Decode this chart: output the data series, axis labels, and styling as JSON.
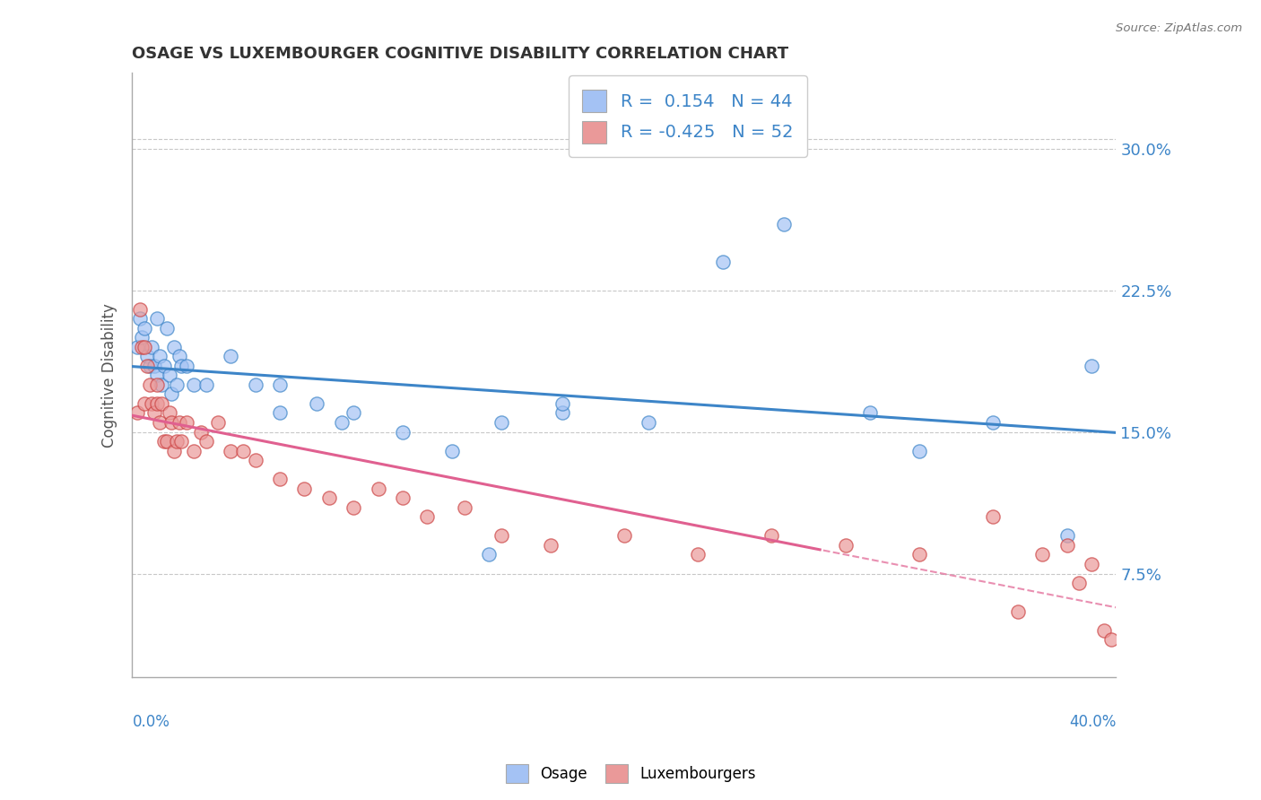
{
  "title": "OSAGE VS LUXEMBOURGER COGNITIVE DISABILITY CORRELATION CHART",
  "source": "Source: ZipAtlas.com",
  "ylabel": "Cognitive Disability",
  "legend_label1": "Osage",
  "legend_label2": "Luxembourgers",
  "r1": 0.154,
  "n1": 44,
  "r2": -0.425,
  "n2": 52,
  "color_osage": "#a4c2f4",
  "color_lux": "#ea9999",
  "color_line_osage": "#3d85c8",
  "color_line_lux": "#e06090",
  "color_tick": "#3d85c8",
  "color_title": "#333333",
  "ytick_labels": [
    "7.5%",
    "15.0%",
    "22.5%",
    "30.0%"
  ],
  "ytick_values": [
    0.075,
    0.15,
    0.225,
    0.3
  ],
  "xlim": [
    0.0,
    0.4
  ],
  "ylim": [
    0.02,
    0.34
  ],
  "background_color": "#ffffff",
  "grid_color": "#c8c8c8",
  "osage_x": [
    0.002,
    0.003,
    0.004,
    0.005,
    0.006,
    0.007,
    0.008,
    0.009,
    0.01,
    0.01,
    0.011,
    0.012,
    0.013,
    0.014,
    0.015,
    0.016,
    0.017,
    0.018,
    0.019,
    0.02,
    0.022,
    0.025,
    0.03,
    0.04,
    0.05,
    0.06,
    0.075,
    0.09,
    0.11,
    0.13,
    0.15,
    0.175,
    0.21,
    0.24,
    0.3,
    0.35,
    0.38,
    0.39,
    0.32,
    0.265,
    0.175,
    0.145,
    0.085,
    0.06
  ],
  "osage_y": [
    0.195,
    0.21,
    0.2,
    0.205,
    0.19,
    0.185,
    0.195,
    0.185,
    0.18,
    0.21,
    0.19,
    0.175,
    0.185,
    0.205,
    0.18,
    0.17,
    0.195,
    0.175,
    0.19,
    0.185,
    0.185,
    0.175,
    0.175,
    0.19,
    0.175,
    0.175,
    0.165,
    0.16,
    0.15,
    0.14,
    0.155,
    0.16,
    0.155,
    0.24,
    0.16,
    0.155,
    0.095,
    0.185,
    0.14,
    0.26,
    0.165,
    0.085,
    0.155,
    0.16
  ],
  "lux_x": [
    0.002,
    0.003,
    0.004,
    0.005,
    0.005,
    0.006,
    0.007,
    0.008,
    0.009,
    0.01,
    0.01,
    0.011,
    0.012,
    0.013,
    0.014,
    0.015,
    0.016,
    0.017,
    0.018,
    0.019,
    0.02,
    0.022,
    0.025,
    0.028,
    0.03,
    0.035,
    0.04,
    0.045,
    0.05,
    0.06,
    0.07,
    0.08,
    0.09,
    0.1,
    0.11,
    0.12,
    0.135,
    0.15,
    0.17,
    0.2,
    0.23,
    0.26,
    0.29,
    0.32,
    0.35,
    0.36,
    0.37,
    0.38,
    0.385,
    0.39,
    0.395,
    0.398
  ],
  "lux_y": [
    0.16,
    0.215,
    0.195,
    0.195,
    0.165,
    0.185,
    0.175,
    0.165,
    0.16,
    0.175,
    0.165,
    0.155,
    0.165,
    0.145,
    0.145,
    0.16,
    0.155,
    0.14,
    0.145,
    0.155,
    0.145,
    0.155,
    0.14,
    0.15,
    0.145,
    0.155,
    0.14,
    0.14,
    0.135,
    0.125,
    0.12,
    0.115,
    0.11,
    0.12,
    0.115,
    0.105,
    0.11,
    0.095,
    0.09,
    0.095,
    0.085,
    0.095,
    0.09,
    0.085,
    0.105,
    0.055,
    0.085,
    0.09,
    0.07,
    0.08,
    0.045,
    0.04
  ]
}
